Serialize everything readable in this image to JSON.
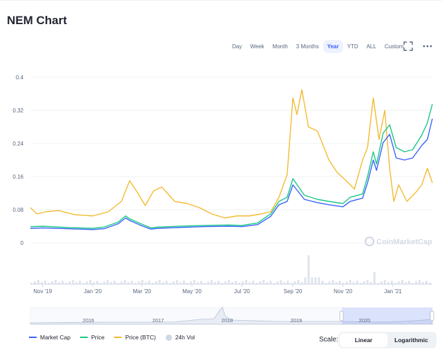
{
  "title": "NEM Chart",
  "ranges": [
    "Day",
    "Week",
    "Month",
    "3 Months",
    "Year",
    "YTD",
    "ALL",
    "Custom"
  ],
  "active_range": "Year",
  "icons": {
    "fullscreen": "fullscreen-icon",
    "more": "more-dots-icon"
  },
  "watermark": "CoinMarketCap",
  "legend": [
    "Market Cap",
    "Price",
    "Price (BTC)",
    "24h Vol"
  ],
  "scale": {
    "label": "Scale:",
    "options": [
      "Linear",
      "Logarithmic"
    ],
    "active": "Linear"
  },
  "colors": {
    "market_cap": "#3861fb",
    "price": "#16c784",
    "price_btc": "#f3ba2f",
    "volume": "#cfd6e4",
    "accent": "#3861fb"
  },
  "chart_data": {
    "type": "line",
    "title": "NEM Chart",
    "ylim": [
      0,
      0.4
    ],
    "y_ticks": [
      "0",
      "0.08",
      "0.16",
      "0.24",
      "0.32",
      "0.4"
    ],
    "x_ticks": [
      "Nov '19",
      "Jan '20",
      "Mar '20",
      "May '20",
      "Jul '20",
      "Sep '20",
      "Nov '20",
      "Jan '21"
    ],
    "x_tick_dates": [
      "2019-11-01",
      "2020-01-01",
      "2020-03-01",
      "2020-05-01",
      "2020-07-01",
      "2020-09-01",
      "2020-11-01",
      "2021-01-01"
    ],
    "x_range": [
      "2019-10-17",
      "2021-02-18"
    ],
    "grid": true,
    "series": [
      {
        "name": "Price",
        "x": [
          "2019-10-17",
          "2019-11-01",
          "2019-12-01",
          "2020-01-01",
          "2020-01-15",
          "2020-02-01",
          "2020-02-10",
          "2020-02-15",
          "2020-03-01",
          "2020-03-12",
          "2020-03-20",
          "2020-04-15",
          "2020-05-15",
          "2020-06-15",
          "2020-07-01",
          "2020-07-20",
          "2020-08-05",
          "2020-08-15",
          "2020-08-25",
          "2020-09-01",
          "2020-09-15",
          "2020-10-01",
          "2020-10-15",
          "2020-11-01",
          "2020-11-10",
          "2020-11-25",
          "2020-12-01",
          "2020-12-08",
          "2020-12-12",
          "2020-12-20",
          "2020-12-28",
          "2021-01-05",
          "2021-01-15",
          "2021-01-25",
          "2021-02-05",
          "2021-02-12",
          "2021-02-18"
        ],
        "values": [
          0.039,
          0.04,
          0.037,
          0.035,
          0.038,
          0.05,
          0.065,
          0.058,
          0.045,
          0.036,
          0.038,
          0.04,
          0.042,
          0.043,
          0.042,
          0.048,
          0.07,
          0.1,
          0.11,
          0.155,
          0.115,
          0.105,
          0.1,
          0.095,
          0.11,
          0.118,
          0.16,
          0.22,
          0.19,
          0.265,
          0.285,
          0.23,
          0.22,
          0.225,
          0.26,
          0.29,
          0.335
        ]
      },
      {
        "name": "Market Cap",
        "x": [
          "2019-10-17",
          "2019-11-01",
          "2019-12-01",
          "2020-01-01",
          "2020-01-15",
          "2020-02-01",
          "2020-02-10",
          "2020-02-15",
          "2020-03-01",
          "2020-03-12",
          "2020-03-20",
          "2020-04-15",
          "2020-05-15",
          "2020-06-15",
          "2020-07-01",
          "2020-07-20",
          "2020-08-05",
          "2020-08-15",
          "2020-08-25",
          "2020-09-01",
          "2020-09-15",
          "2020-10-01",
          "2020-10-15",
          "2020-11-01",
          "2020-11-10",
          "2020-11-25",
          "2020-12-01",
          "2020-12-08",
          "2020-12-12",
          "2020-12-20",
          "2020-12-28",
          "2021-01-05",
          "2021-01-15",
          "2021-01-25",
          "2021-02-05",
          "2021-02-12",
          "2021-02-18"
        ],
        "values": [
          0.035,
          0.036,
          0.034,
          0.032,
          0.034,
          0.046,
          0.06,
          0.054,
          0.041,
          0.033,
          0.035,
          0.037,
          0.039,
          0.04,
          0.039,
          0.044,
          0.064,
          0.092,
          0.1,
          0.14,
          0.105,
          0.097,
          0.092,
          0.087,
          0.1,
          0.108,
          0.145,
          0.2,
          0.175,
          0.242,
          0.262,
          0.205,
          0.2,
          0.205,
          0.235,
          0.25,
          0.3
        ]
      },
      {
        "name": "Price (BTC)",
        "x": [
          "2019-10-17",
          "2019-10-25",
          "2019-11-05",
          "2019-11-20",
          "2019-12-10",
          "2020-01-01",
          "2020-01-20",
          "2020-02-05",
          "2020-02-15",
          "2020-02-25",
          "2020-03-05",
          "2020-03-15",
          "2020-03-25",
          "2020-04-10",
          "2020-04-25",
          "2020-05-10",
          "2020-05-25",
          "2020-06-10",
          "2020-06-25",
          "2020-07-10",
          "2020-07-25",
          "2020-08-05",
          "2020-08-15",
          "2020-08-25",
          "2020-09-01",
          "2020-09-06",
          "2020-09-12",
          "2020-09-20",
          "2020-10-01",
          "2020-10-15",
          "2020-10-25",
          "2020-11-05",
          "2020-11-15",
          "2020-11-25",
          "2020-12-01",
          "2020-12-08",
          "2020-12-15",
          "2020-12-22",
          "2020-12-28",
          "2021-01-02",
          "2021-01-08",
          "2021-01-18",
          "2021-01-28",
          "2021-02-05",
          "2021-02-12",
          "2021-02-18"
        ],
        "values": [
          0.085,
          0.07,
          0.075,
          0.078,
          0.068,
          0.065,
          0.075,
          0.1,
          0.15,
          0.12,
          0.09,
          0.125,
          0.135,
          0.1,
          0.095,
          0.085,
          0.07,
          0.06,
          0.065,
          0.065,
          0.07,
          0.075,
          0.11,
          0.165,
          0.35,
          0.31,
          0.37,
          0.28,
          0.27,
          0.2,
          0.17,
          0.15,
          0.13,
          0.2,
          0.23,
          0.35,
          0.25,
          0.32,
          0.18,
          0.1,
          0.14,
          0.1,
          0.12,
          0.14,
          0.18,
          0.145
        ]
      }
    ]
  }
}
